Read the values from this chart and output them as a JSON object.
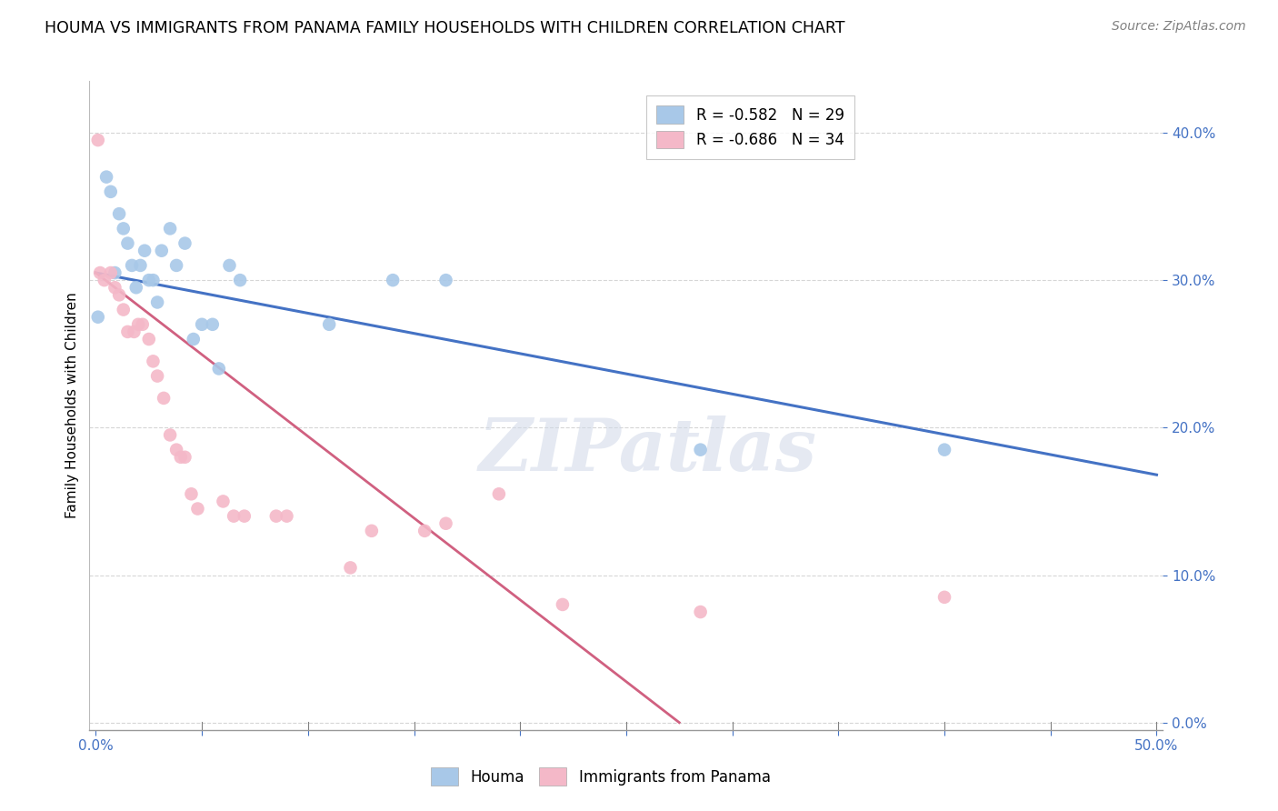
{
  "title": "HOUMA VS IMMIGRANTS FROM PANAMA FAMILY HOUSEHOLDS WITH CHILDREN CORRELATION CHART",
  "source": "Source: ZipAtlas.com",
  "ylabel_label": "Family Households with Children",
  "xlim": [
    -0.003,
    0.503
  ],
  "ylim": [
    -0.005,
    0.435
  ],
  "xticks": [
    0.0,
    0.05,
    0.1,
    0.15,
    0.2,
    0.25,
    0.3,
    0.35,
    0.4,
    0.45,
    0.5
  ],
  "yticks": [
    0.0,
    0.1,
    0.2,
    0.3,
    0.4
  ],
  "houma_color": "#a8c8e8",
  "panama_color": "#f4b8c8",
  "houma_line_color": "#4472c4",
  "panama_line_color": "#d06080",
  "houma_R": -0.582,
  "houma_N": 29,
  "panama_R": -0.686,
  "panama_N": 34,
  "houma_scatter_x": [
    0.001,
    0.005,
    0.007,
    0.009,
    0.011,
    0.013,
    0.015,
    0.017,
    0.019,
    0.021,
    0.023,
    0.025,
    0.027,
    0.029,
    0.031,
    0.035,
    0.038,
    0.042,
    0.046,
    0.05,
    0.055,
    0.058,
    0.063,
    0.068,
    0.11,
    0.14,
    0.165,
    0.285,
    0.4
  ],
  "houma_scatter_y": [
    0.275,
    0.37,
    0.36,
    0.305,
    0.345,
    0.335,
    0.325,
    0.31,
    0.295,
    0.31,
    0.32,
    0.3,
    0.3,
    0.285,
    0.32,
    0.335,
    0.31,
    0.325,
    0.26,
    0.27,
    0.27,
    0.24,
    0.31,
    0.3,
    0.27,
    0.3,
    0.3,
    0.185,
    0.185
  ],
  "panama_scatter_x": [
    0.001,
    0.002,
    0.004,
    0.007,
    0.009,
    0.011,
    0.013,
    0.015,
    0.018,
    0.02,
    0.022,
    0.025,
    0.027,
    0.029,
    0.032,
    0.035,
    0.038,
    0.04,
    0.042,
    0.045,
    0.048,
    0.06,
    0.065,
    0.07,
    0.085,
    0.09,
    0.12,
    0.13,
    0.155,
    0.165,
    0.19,
    0.22,
    0.285,
    0.4
  ],
  "panama_scatter_y": [
    0.395,
    0.305,
    0.3,
    0.305,
    0.295,
    0.29,
    0.28,
    0.265,
    0.265,
    0.27,
    0.27,
    0.26,
    0.245,
    0.235,
    0.22,
    0.195,
    0.185,
    0.18,
    0.18,
    0.155,
    0.145,
    0.15,
    0.14,
    0.14,
    0.14,
    0.14,
    0.105,
    0.13,
    0.13,
    0.135,
    0.155,
    0.08,
    0.075,
    0.085
  ],
  "houma_trend_x0": 0.0,
  "houma_trend_y0": 0.305,
  "houma_trend_x1": 0.5,
  "houma_trend_y1": 0.168,
  "panama_trend_x0": 0.0,
  "panama_trend_y0": 0.305,
  "panama_trend_x1": 0.275,
  "panama_trend_y1": 0.0,
  "watermark_text": "ZIPatlas",
  "background_color": "#ffffff",
  "grid_color": "#cccccc"
}
